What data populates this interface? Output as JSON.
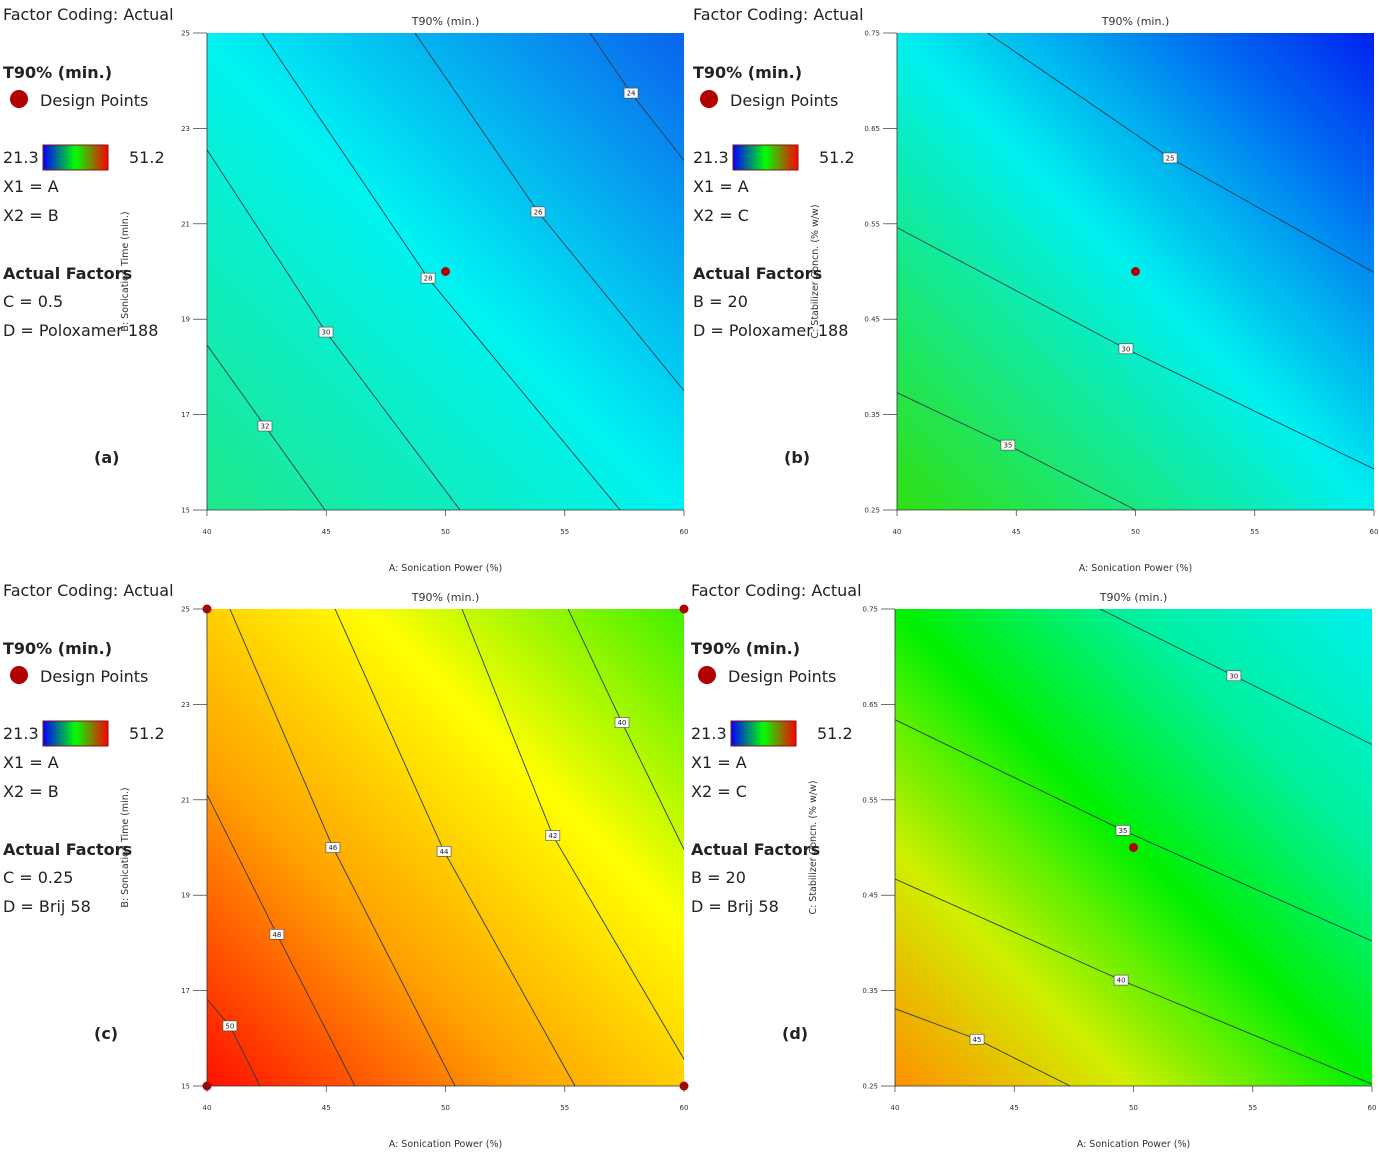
{
  "panels": [
    {
      "label": "(a)",
      "legend": {
        "factor_coding": "Factor Coding: Actual",
        "response": "T90% (min.)",
        "design_points": "Design Points",
        "min": "21.3",
        "max": "51.2",
        "x1": "X1 = A",
        "x2": "X2 = B",
        "actual_factors": "Actual Factors",
        "f1": "C = 0.5",
        "f2": "D = Poloxamer 188"
      }
    },
    {
      "label": "(b)",
      "legend": {
        "factor_coding": "Factor Coding: Actual",
        "response": "T90% (min.)",
        "design_points": "Design Points",
        "min": "21.3",
        "max": "51.2",
        "x1": "X1 = A",
        "x2": "X2 = C",
        "actual_factors": "Actual Factors",
        "f1": "B = 20",
        "f2": "D = Poloxamer 188"
      }
    },
    {
      "label": "(c)",
      "legend": {
        "factor_coding": "Factor Coding: Actual",
        "response": "T90% (min.)",
        "design_points": "Design Points",
        "min": "21.3",
        "max": "51.2",
        "x1": "X1 = A",
        "x2": "X2 = B",
        "actual_factors": "Actual Factors",
        "f1": "C = 0.25",
        "f2": "D = Brij 58"
      }
    },
    {
      "label": "(d)",
      "legend": {
        "factor_coding": "Factor Coding: Actual",
        "response": "T90% (min.)",
        "design_points": "Design Points",
        "min": "21.3",
        "max": "51.2",
        "x1": "X1 = A",
        "x2": "X2 = C",
        "actual_factors": "Actual Factors",
        "f1": "B = 20",
        "f2": "D = Brij 58"
      }
    }
  ],
  "colors": {
    "low": "#2b3a9a",
    "high": "#c0392b",
    "design_point": "#b00000",
    "colorbar": [
      "#0000ff",
      "#00ff00",
      "#ff0000"
    ]
  },
  "chart_data": [
    {
      "type": "contour",
      "title": "T90% (min.)",
      "xlabel": "A: Sonication Power (%)",
      "ylabel": "B: Sonication Time (min.)",
      "xlim": [
        40,
        60
      ],
      "ylim": [
        15,
        25
      ],
      "xticks": [
        "40",
        "45",
        "50",
        "55",
        "60"
      ],
      "yticks": [
        "15",
        "17",
        "19",
        "21",
        "23",
        "25"
      ],
      "fill_gradient": [
        "#1ee88a",
        "#00f2f2",
        "#0a62ee"
      ],
      "contours": [
        {
          "label": "24",
          "points": [
            [
              56.06,
              25
            ],
            [
              57.78,
              23.74
            ],
            [
              60,
              22.33
            ]
          ]
        },
        {
          "label": "26",
          "points": [
            [
              48.72,
              25
            ],
            [
              53.88,
              21.25
            ],
            [
              60,
              17.5
            ]
          ]
        },
        {
          "label": "28",
          "points": [
            [
              42.31,
              25
            ],
            [
              49.27,
              19.86
            ],
            [
              57.32,
              15
            ]
          ]
        },
        {
          "label": "30",
          "points": [
            [
              40,
              22.55
            ],
            [
              44.99,
              18.73
            ],
            [
              50.61,
              15
            ]
          ]
        },
        {
          "label": "32",
          "points": [
            [
              40,
              18.46
            ],
            [
              42.43,
              16.76
            ],
            [
              44.95,
              15
            ]
          ]
        }
      ],
      "design_points": [
        [
          50,
          20
        ]
      ]
    },
    {
      "type": "contour",
      "title": "T90% (min.)",
      "xlabel": "A: Sonication Power (%)",
      "ylabel": "C: Stabilizer Concn. (% w/w)",
      "xlim": [
        40,
        60
      ],
      "ylim": [
        0.25,
        0.75
      ],
      "xticks": [
        "40",
        "45",
        "50",
        "55",
        "60"
      ],
      "yticks": [
        "0.25",
        "0.35",
        "0.45",
        "0.55",
        "0.65",
        "0.75"
      ],
      "fill_gradient": [
        "#30e010",
        "#00f0f0",
        "#0020f0"
      ],
      "contours": [
        {
          "label": "25",
          "points": [
            [
              43.8,
              0.75
            ],
            [
              51.45,
              0.619
            ],
            [
              60,
              0.499
            ]
          ]
        },
        {
          "label": "30",
          "points": [
            [
              40,
              0.546
            ],
            [
              49.6,
              0.419
            ],
            [
              60,
              0.293
            ]
          ]
        },
        {
          "label": "35",
          "points": [
            [
              40,
              0.373
            ],
            [
              44.65,
              0.318
            ],
            [
              50,
              0.25
            ]
          ]
        }
      ],
      "design_points": [
        [
          50,
          0.5
        ]
      ]
    },
    {
      "type": "contour",
      "title": "T90% (min.)",
      "xlabel": "A: Sonication Power (%)",
      "ylabel": "B: Sonication Time (min.)",
      "xlim": [
        40,
        60
      ],
      "ylim": [
        15,
        25
      ],
      "xticks": [
        "40",
        "45",
        "50",
        "55",
        "60"
      ],
      "yticks": [
        "15",
        "17",
        "19",
        "21",
        "23",
        "25"
      ],
      "fill_gradient": [
        "#ff1000",
        "#ffa000",
        "#ffff00",
        "#40f000"
      ],
      "contours": [
        {
          "label": "50",
          "points": [
            [
              40,
              16.82
            ],
            [
              40.96,
              16.26
            ],
            [
              42.22,
              15
            ]
          ]
        },
        {
          "label": "48",
          "points": [
            [
              40,
              21.11
            ],
            [
              42.93,
              18.18
            ],
            [
              46.2,
              15
            ]
          ]
        },
        {
          "label": "46",
          "points": [
            [
              40.96,
              25
            ],
            [
              45.28,
              20.0
            ],
            [
              50.4,
              15
            ]
          ]
        },
        {
          "label": "44",
          "points": [
            [
              45.37,
              25
            ],
            [
              49.94,
              19.92
            ],
            [
              55.43,
              15
            ]
          ]
        },
        {
          "label": "42",
          "points": [
            [
              50.69,
              25
            ],
            [
              54.5,
              20.25
            ],
            [
              60,
              15.56
            ]
          ]
        },
        {
          "label": "40",
          "points": [
            [
              55.14,
              25
            ],
            [
              57.4,
              22.62
            ],
            [
              60,
              19.96
            ]
          ]
        }
      ],
      "design_points": [
        [
          40,
          15
        ],
        [
          40,
          25
        ],
        [
          60,
          15
        ],
        [
          60,
          25
        ]
      ]
    },
    {
      "type": "contour",
      "title": "T90% (min.)",
      "xlabel": "A: Sonication Power (%)",
      "ylabel": "C: Stabilizer Concn. (% w/w)",
      "xlim": [
        40,
        60
      ],
      "ylim": [
        0.25,
        0.75
      ],
      "xticks": [
        "40",
        "45",
        "50",
        "55",
        "60"
      ],
      "yticks": [
        "0.25",
        "0.35",
        "0.45",
        "0.55",
        "0.65",
        "0.75"
      ],
      "fill_gradient": [
        "#ff9000",
        "#d0f000",
        "#00f000",
        "#00f0a0",
        "#00f0f0"
      ],
      "contours": [
        {
          "label": "30",
          "points": [
            [
              48.6,
              0.75
            ],
            [
              54.21,
              0.68
            ],
            [
              60,
              0.608
            ]
          ]
        },
        {
          "label": "35",
          "points": [
            [
              40,
              0.634
            ],
            [
              49.56,
              0.518
            ],
            [
              60,
              0.402
            ]
          ]
        },
        {
          "label": "40",
          "points": [
            [
              40,
              0.467
            ],
            [
              49.48,
              0.361
            ],
            [
              60,
              0.252
            ]
          ]
        },
        {
          "label": "45",
          "points": [
            [
              40,
              0.331
            ],
            [
              43.44,
              0.299
            ],
            [
              47.34,
              0.25
            ]
          ]
        }
      ],
      "design_points": [
        [
          50,
          0.5
        ]
      ]
    }
  ]
}
